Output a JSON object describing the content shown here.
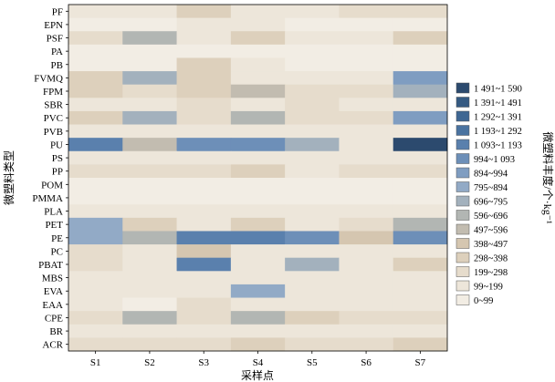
{
  "chart_data": {
    "type": "heatmap",
    "title": "",
    "xlabel": "采样点",
    "ylabel": "微塑料类型",
    "colorbar_label": "微塑料丰度/个·kg⁻¹",
    "x": [
      "S1",
      "S2",
      "S3",
      "S4",
      "S5",
      "S6",
      "S7"
    ],
    "y": [
      "PF",
      "EPN",
      "PSF",
      "PA",
      "PB",
      "FVMQ",
      "FPM",
      "SBR",
      "PVC",
      "PVB",
      "PU",
      "PS",
      "PP",
      "POM",
      "PMMA",
      "PLA",
      "PET",
      "PE",
      "PC",
      "PBAT",
      "MBS",
      "EVA",
      "EAA",
      "CPE",
      "BR",
      "ACR"
    ],
    "legend": {
      "placement": "right",
      "bins": [
        {
          "label": "1 491~1 590",
          "color": "#2c4a6e"
        },
        {
          "label": "1 391~1 491",
          "color": "#355a82"
        },
        {
          "label": "1 292~1 391",
          "color": "#3f6793"
        },
        {
          "label": "1 193~1 292",
          "color": "#4a73a0"
        },
        {
          "label": "1 093~1 193",
          "color": "#5a80ad"
        },
        {
          "label": "994~1 093",
          "color": "#6d8fb8"
        },
        {
          "label": "894~994",
          "color": "#7f9dc1"
        },
        {
          "label": "795~894",
          "color": "#92aac6"
        },
        {
          "label": "696~795",
          "color": "#a3b1bd"
        },
        {
          "label": "596~696",
          "color": "#b2b6b3"
        },
        {
          "label": "497~596",
          "color": "#c2bcb0"
        },
        {
          "label": "398~497",
          "color": "#d5c6b0"
        },
        {
          "label": "298~398",
          "color": "#ddd0bc"
        },
        {
          "label": "199~298",
          "color": "#e6dccc"
        },
        {
          "label": "99~199",
          "color": "#ede6da"
        },
        {
          "label": "0~99",
          "color": "#f2ede4"
        }
      ]
    },
    "values": [
      [
        150,
        100,
        330,
        150,
        150,
        250,
        200
      ],
      [
        50,
        50,
        150,
        100,
        50,
        50,
        50
      ],
      [
        200,
        650,
        100,
        330,
        100,
        180,
        380
      ],
      [
        30,
        30,
        30,
        30,
        30,
        30,
        30
      ],
      [
        80,
        80,
        350,
        100,
        80,
        80,
        80
      ],
      [
        350,
        700,
        300,
        150,
        100,
        150,
        950
      ],
      [
        300,
        200,
        300,
        550,
        200,
        250,
        700
      ],
      [
        100,
        100,
        200,
        100,
        230,
        100,
        100
      ],
      [
        300,
        700,
        200,
        600,
        230,
        200,
        900
      ],
      [
        100,
        100,
        100,
        100,
        150,
        150,
        100
      ],
      [
        1150,
        500,
        1000,
        1000,
        750,
        100,
        1550
      ],
      [
        100,
        100,
        100,
        100,
        100,
        100,
        100
      ],
      [
        200,
        250,
        200,
        350,
        150,
        250,
        200
      ],
      [
        80,
        80,
        80,
        80,
        80,
        80,
        80
      ],
      [
        80,
        80,
        80,
        80,
        80,
        80,
        80
      ],
      [
        100,
        100,
        120,
        100,
        150,
        100,
        100
      ],
      [
        850,
        300,
        150,
        330,
        150,
        200,
        650
      ],
      [
        850,
        600,
        1150,
        1100,
        1050,
        450,
        1050
      ],
      [
        280,
        150,
        400,
        100,
        100,
        100,
        100
      ],
      [
        200,
        150,
        1150,
        100,
        700,
        100,
        330
      ],
      [
        100,
        100,
        100,
        100,
        100,
        100,
        100
      ],
      [
        100,
        100,
        100,
        850,
        100,
        100,
        150
      ],
      [
        150,
        80,
        200,
        100,
        150,
        100,
        100
      ],
      [
        250,
        600,
        200,
        650,
        300,
        250,
        250
      ],
      [
        100,
        100,
        100,
        100,
        100,
        100,
        150
      ],
      [
        200,
        200,
        200,
        350,
        200,
        200,
        350
      ]
    ]
  }
}
